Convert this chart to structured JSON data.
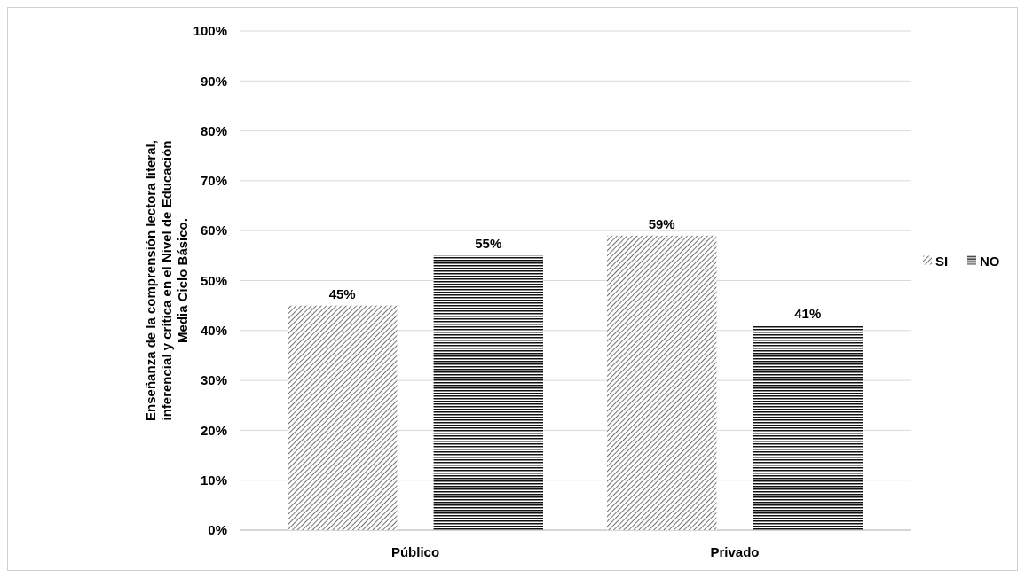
{
  "chart_data": {
    "type": "bar",
    "ylabel": "Enseñanza de la comprensión lectora literal, inferencial y crítica en el Nivel de Educación Media Ciclo Básico.",
    "categories": [
      "Público",
      "Privado"
    ],
    "series": [
      {
        "name": "SI",
        "color": "#444444",
        "values": [
          45,
          59
        ],
        "value_labels": [
          "45%",
          "59%"
        ]
      },
      {
        "name": "NO",
        "color": "#111111",
        "values": [
          55,
          41
        ],
        "value_labels": [
          "55%",
          "41%"
        ]
      }
    ],
    "ylim": [
      0,
      100
    ],
    "yticks": [
      {
        "value": 0,
        "label": "0%"
      },
      {
        "value": 10,
        "label": "10%"
      },
      {
        "value": 20,
        "label": "20%"
      },
      {
        "value": 30,
        "label": "30%"
      },
      {
        "value": 40,
        "label": "40%"
      },
      {
        "value": 50,
        "label": "50%"
      },
      {
        "value": 60,
        "label": "60%"
      },
      {
        "value": 70,
        "label": "70%"
      },
      {
        "value": 80,
        "label": "80%"
      },
      {
        "value": 90,
        "label": "90%"
      },
      {
        "value": 100,
        "label": "100%"
      }
    ],
    "grid": "y",
    "legend": "right"
  }
}
